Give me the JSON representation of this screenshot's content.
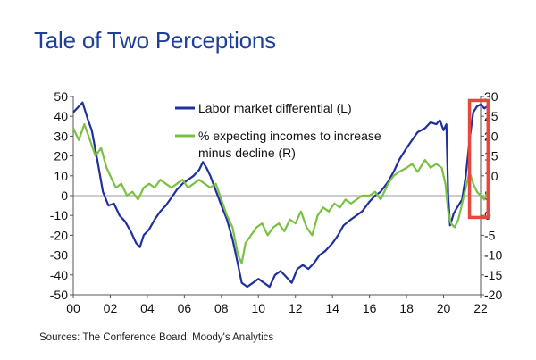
{
  "title": "Tale of Two Perceptions",
  "source": "Sources: The Conference Board, Moody's Analytics",
  "chart_data": {
    "type": "line",
    "title": "Tale of Two Perceptions",
    "xlabel": "",
    "ylabel_left": "",
    "ylabel_right": "",
    "x_ticks": [
      "00",
      "02",
      "04",
      "06",
      "08",
      "10",
      "12",
      "14",
      "16",
      "18",
      "20",
      "22"
    ],
    "y_left_ticks": [
      "50",
      "40",
      "30",
      "20",
      "10",
      "0",
      "-10",
      "-20",
      "-30",
      "-40",
      "-50"
    ],
    "y_right_ticks": [
      "30",
      "25",
      "20",
      "15",
      "10",
      "5",
      "0",
      "-5",
      "-10",
      "-15",
      "-20"
    ],
    "ylim_left": [
      -50,
      50
    ],
    "ylim_right": [
      -20,
      30
    ],
    "xlim": [
      2000,
      2022
    ],
    "legend": [
      {
        "label": "Labor market differential (L)",
        "color": "#1f2f9e"
      },
      {
        "label": "% expecting incomes to increase",
        "label2": "minus decline (R)",
        "color": "#7ac143"
      }
    ],
    "highlight_box": {
      "x_from": 2021.4,
      "x_to": 2022.4,
      "y_right_from": -0.5,
      "y_right_to": 29,
      "color": "#e8473d"
    },
    "series": [
      {
        "name": "Labor market differential (L)",
        "axis": "left",
        "color": "#1f2f9e",
        "points": [
          [
            2000.0,
            42
          ],
          [
            2000.3,
            45
          ],
          [
            2000.5,
            47
          ],
          [
            2000.8,
            38
          ],
          [
            2001.0,
            33
          ],
          [
            2001.3,
            18
          ],
          [
            2001.6,
            2
          ],
          [
            2001.9,
            -5
          ],
          [
            2002.2,
            -4
          ],
          [
            2002.5,
            -10
          ],
          [
            2002.8,
            -13
          ],
          [
            2003.1,
            -18
          ],
          [
            2003.4,
            -24
          ],
          [
            2003.6,
            -26
          ],
          [
            2003.8,
            -20
          ],
          [
            2004.1,
            -17
          ],
          [
            2004.4,
            -12
          ],
          [
            2004.7,
            -8
          ],
          [
            2005.0,
            -5
          ],
          [
            2005.3,
            -1
          ],
          [
            2005.6,
            3
          ],
          [
            2005.9,
            6
          ],
          [
            2006.2,
            8
          ],
          [
            2006.5,
            10
          ],
          [
            2006.8,
            13
          ],
          [
            2007.0,
            17
          ],
          [
            2007.2,
            14
          ],
          [
            2007.4,
            10
          ],
          [
            2007.6,
            5
          ],
          [
            2007.8,
            0
          ],
          [
            2008.0,
            -5
          ],
          [
            2008.3,
            -12
          ],
          [
            2008.6,
            -22
          ],
          [
            2008.9,
            -35
          ],
          [
            2009.1,
            -44
          ],
          [
            2009.4,
            -46
          ],
          [
            2009.7,
            -44
          ],
          [
            2010.0,
            -42
          ],
          [
            2010.3,
            -44
          ],
          [
            2010.6,
            -46
          ],
          [
            2010.9,
            -40
          ],
          [
            2011.2,
            -38
          ],
          [
            2011.5,
            -41
          ],
          [
            2011.8,
            -44
          ],
          [
            2012.1,
            -37
          ],
          [
            2012.4,
            -35
          ],
          [
            2012.7,
            -37
          ],
          [
            2013.0,
            -34
          ],
          [
            2013.3,
            -30
          ],
          [
            2013.6,
            -28
          ],
          [
            2014.0,
            -24
          ],
          [
            2014.3,
            -20
          ],
          [
            2014.6,
            -15
          ],
          [
            2015.0,
            -12
          ],
          [
            2015.3,
            -10
          ],
          [
            2015.6,
            -8
          ],
          [
            2016.0,
            -3
          ],
          [
            2016.3,
            0
          ],
          [
            2016.6,
            2
          ],
          [
            2017.0,
            7
          ],
          [
            2017.3,
            12
          ],
          [
            2017.6,
            18
          ],
          [
            2018.0,
            24
          ],
          [
            2018.3,
            28
          ],
          [
            2018.6,
            32
          ],
          [
            2019.0,
            34
          ],
          [
            2019.3,
            37
          ],
          [
            2019.6,
            36
          ],
          [
            2019.8,
            38
          ],
          [
            2020.0,
            33
          ],
          [
            2020.15,
            36
          ],
          [
            2020.25,
            0
          ],
          [
            2020.35,
            -15
          ],
          [
            2020.55,
            -9
          ],
          [
            2020.8,
            -5
          ],
          [
            2021.0,
            -2
          ],
          [
            2021.2,
            10
          ],
          [
            2021.4,
            28
          ],
          [
            2021.6,
            42
          ],
          [
            2021.8,
            45
          ],
          [
            2022.0,
            46
          ],
          [
            2022.2,
            44
          ],
          [
            2022.35,
            45
          ]
        ]
      },
      {
        "name": "% expecting incomes to increase minus decline (R)",
        "axis": "right",
        "color": "#7ac143",
        "points": [
          [
            2000.0,
            22
          ],
          [
            2000.3,
            19
          ],
          [
            2000.6,
            23
          ],
          [
            2000.9,
            19
          ],
          [
            2001.2,
            15
          ],
          [
            2001.5,
            17
          ],
          [
            2001.8,
            12
          ],
          [
            2002.1,
            9
          ],
          [
            2002.3,
            7
          ],
          [
            2002.6,
            8
          ],
          [
            2002.9,
            5
          ],
          [
            2003.2,
            6
          ],
          [
            2003.5,
            4
          ],
          [
            2003.8,
            7
          ],
          [
            2004.1,
            8
          ],
          [
            2004.4,
            7
          ],
          [
            2004.7,
            9
          ],
          [
            2005.0,
            8
          ],
          [
            2005.3,
            7
          ],
          [
            2005.6,
            8
          ],
          [
            2005.9,
            9
          ],
          [
            2006.2,
            7
          ],
          [
            2006.5,
            8
          ],
          [
            2006.8,
            9
          ],
          [
            2007.1,
            8
          ],
          [
            2007.4,
            7
          ],
          [
            2007.7,
            8
          ],
          [
            2008.0,
            4
          ],
          [
            2008.3,
            0
          ],
          [
            2008.6,
            -3
          ],
          [
            2008.9,
            -10
          ],
          [
            2009.1,
            -12
          ],
          [
            2009.3,
            -7
          ],
          [
            2009.6,
            -5
          ],
          [
            2009.9,
            -3
          ],
          [
            2010.2,
            -2
          ],
          [
            2010.5,
            -5
          ],
          [
            2010.8,
            -3
          ],
          [
            2011.1,
            -2
          ],
          [
            2011.4,
            -4
          ],
          [
            2011.7,
            -1
          ],
          [
            2012.0,
            -2
          ],
          [
            2012.3,
            1
          ],
          [
            2012.6,
            -3
          ],
          [
            2012.9,
            -5
          ],
          [
            2013.2,
            0
          ],
          [
            2013.5,
            2
          ],
          [
            2013.8,
            1
          ],
          [
            2014.1,
            3
          ],
          [
            2014.4,
            2
          ],
          [
            2014.7,
            4
          ],
          [
            2015.0,
            3
          ],
          [
            2015.3,
            4
          ],
          [
            2015.6,
            5
          ],
          [
            2016.0,
            5
          ],
          [
            2016.3,
            6
          ],
          [
            2016.6,
            4
          ],
          [
            2017.0,
            8
          ],
          [
            2017.3,
            10
          ],
          [
            2017.6,
            11
          ],
          [
            2018.0,
            12
          ],
          [
            2018.3,
            13
          ],
          [
            2018.6,
            11
          ],
          [
            2019.0,
            14
          ],
          [
            2019.3,
            12
          ],
          [
            2019.6,
            13
          ],
          [
            2019.9,
            12
          ],
          [
            2020.1,
            8
          ],
          [
            2020.25,
            1
          ],
          [
            2020.4,
            -2
          ],
          [
            2020.6,
            -3
          ],
          [
            2020.8,
            -1
          ],
          [
            2021.0,
            3
          ],
          [
            2021.2,
            7
          ],
          [
            2021.4,
            11
          ],
          [
            2021.6,
            8
          ],
          [
            2021.8,
            6
          ],
          [
            2022.0,
            5
          ],
          [
            2022.2,
            4
          ],
          [
            2022.35,
            6
          ]
        ]
      }
    ]
  }
}
